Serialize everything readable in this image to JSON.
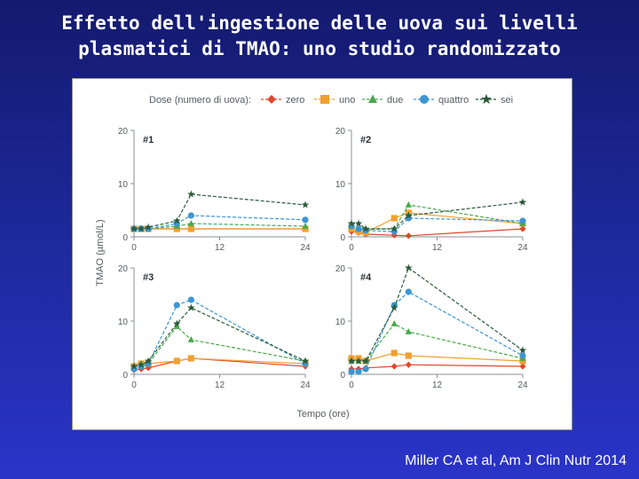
{
  "slide": {
    "title_line1": "Effetto dell'ingestione delle uova sui livelli",
    "title_line2": "plasmatici di TMAO: uno studio randomizzato",
    "citation": "Miller CA et al, Am J Clin Nutr 2014"
  },
  "chart_data": {
    "type": "line",
    "legend_title": "Dose (numero di uova):",
    "legend_position": "top",
    "xlabel": "Tempo (ore)",
    "ylabel": "TMAO (µmol/L)",
    "xlim": [
      0,
      24
    ],
    "ylim": [
      0,
      20
    ],
    "xticks": [
      0,
      12,
      24
    ],
    "yticks": [
      0,
      10,
      20
    ],
    "grid": false,
    "series_styles": [
      {
        "name": "zero",
        "color": "#e0472b",
        "marker": "diamond"
      },
      {
        "name": "uno",
        "color": "#f0a030",
        "marker": "square"
      },
      {
        "name": "due",
        "color": "#4aa84a",
        "marker": "triangle"
      },
      {
        "name": "quattro",
        "color": "#3c96d2",
        "marker": "circle"
      },
      {
        "name": "sei",
        "color": "#2b5a3a",
        "marker": "star"
      }
    ],
    "panels": [
      {
        "label": "#1",
        "x": [
          0,
          1,
          2,
          6,
          8,
          24
        ],
        "series": [
          {
            "name": "zero",
            "values": [
              1.5,
              1.5,
              1.5,
              1.5,
              1.5,
              1.5
            ]
          },
          {
            "name": "uno",
            "values": [
              1.5,
              1.5,
              1.5,
              1.5,
              1.5,
              1.5
            ]
          },
          {
            "name": "due",
            "values": [
              1.5,
              1.5,
              1.5,
              2.0,
              2.5,
              2.0
            ]
          },
          {
            "name": "quattro",
            "values": [
              1.5,
              1.5,
              1.5,
              2.5,
              4.0,
              3.2
            ]
          },
          {
            "name": "sei",
            "values": [
              1.5,
              1.5,
              1.8,
              3.0,
              8.0,
              6.0
            ]
          }
        ]
      },
      {
        "label": "#2",
        "x": [
          0,
          1,
          2,
          6,
          8,
          24
        ],
        "series": [
          {
            "name": "zero",
            "values": [
              1.0,
              0.8,
              0.5,
              0.3,
              0.2,
              1.5
            ]
          },
          {
            "name": "uno",
            "values": [
              1.5,
              1.0,
              0.8,
              3.5,
              4.5,
              2.5
            ]
          },
          {
            "name": "due",
            "values": [
              2.0,
              1.5,
              1.5,
              1.5,
              6.0,
              2.5
            ]
          },
          {
            "name": "quattro",
            "values": [
              2.0,
              1.5,
              1.2,
              1.0,
              3.5,
              3.0
            ]
          },
          {
            "name": "sei",
            "values": [
              2.5,
              2.5,
              1.5,
              1.5,
              4.0,
              6.5
            ]
          }
        ]
      },
      {
        "label": "#3",
        "x": [
          0,
          1,
          2,
          6,
          8,
          24
        ],
        "series": [
          {
            "name": "zero",
            "values": [
              0.8,
              1.0,
              1.2,
              2.5,
              3.0,
              1.5
            ]
          },
          {
            "name": "uno",
            "values": [
              1.5,
              2.0,
              2.0,
              2.5,
              3.0,
              2.0
            ]
          },
          {
            "name": "due",
            "values": [
              1.5,
              2.0,
              2.0,
              9.0,
              6.5,
              2.5
            ]
          },
          {
            "name": "quattro",
            "values": [
              1.0,
              1.5,
              2.0,
              13.0,
              14.0,
              2.0
            ]
          },
          {
            "name": "sei",
            "values": [
              1.5,
              1.8,
              2.5,
              9.5,
              12.5,
              2.5
            ]
          }
        ]
      },
      {
        "label": "#4",
        "x": [
          0,
          1,
          2,
          6,
          8,
          24
        ],
        "series": [
          {
            "name": "zero",
            "values": [
              1.0,
              1.0,
              1.2,
              1.5,
              1.8,
              1.5
            ]
          },
          {
            "name": "uno",
            "values": [
              3.0,
              3.0,
              2.5,
              4.0,
              3.5,
              2.5
            ]
          },
          {
            "name": "due",
            "values": [
              2.5,
              2.5,
              2.5,
              9.5,
              8.0,
              3.0
            ]
          },
          {
            "name": "quattro",
            "values": [
              0.5,
              0.5,
              1.0,
              13.0,
              15.5,
              3.5
            ]
          },
          {
            "name": "sei",
            "values": [
              2.5,
              2.5,
              2.5,
              12.5,
              20.0,
              4.5
            ]
          }
        ]
      }
    ]
  }
}
